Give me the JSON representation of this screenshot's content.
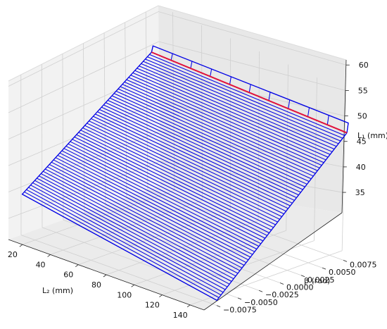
{
  "chart_data": {
    "type": "surface",
    "title": "",
    "xlabel": "L₂ (mm)",
    "ylabel": "β (rad)",
    "zlabel": "L₁ (mm)",
    "x_ticks": [
      20,
      40,
      60,
      80,
      100,
      120,
      140
    ],
    "y_ticks": [
      -0.0075,
      -0.005,
      -0.0025,
      0.0,
      0.0025,
      0.005,
      0.0075
    ],
    "y_tick_labels": [
      "−0.0075",
      "−0.0050",
      "−0.0025",
      "0.0000",
      "0.0025",
      "0.0050",
      "0.0075"
    ],
    "z_ticks": [
      35,
      40,
      45,
      50,
      55,
      60
    ],
    "xlim": [
      10,
      150
    ],
    "ylim": [
      -0.009,
      0.009
    ],
    "zlim": [
      31,
      61
    ],
    "grid": true,
    "surface": {
      "corners": {
        "l2_min_beta_max": {
          "L2": 10,
          "beta": 0.0075,
          "L1": 58
        },
        "l2_min_beta_min": {
          "L2": 10,
          "beta": -0.0075,
          "L1": 39
        },
        "l2_max_beta_min": {
          "L2": 150,
          "beta": -0.0075,
          "L1": 32
        },
        "l2_max_beta_max": {
          "L2": 150,
          "beta": 0.0075,
          "L1": 56
        }
      },
      "mesh_lines": 62,
      "mesh_color": "#0000e6",
      "highlight_color": "#e0103a",
      "highlight": {
        "beta": 0.0075
      }
    }
  }
}
